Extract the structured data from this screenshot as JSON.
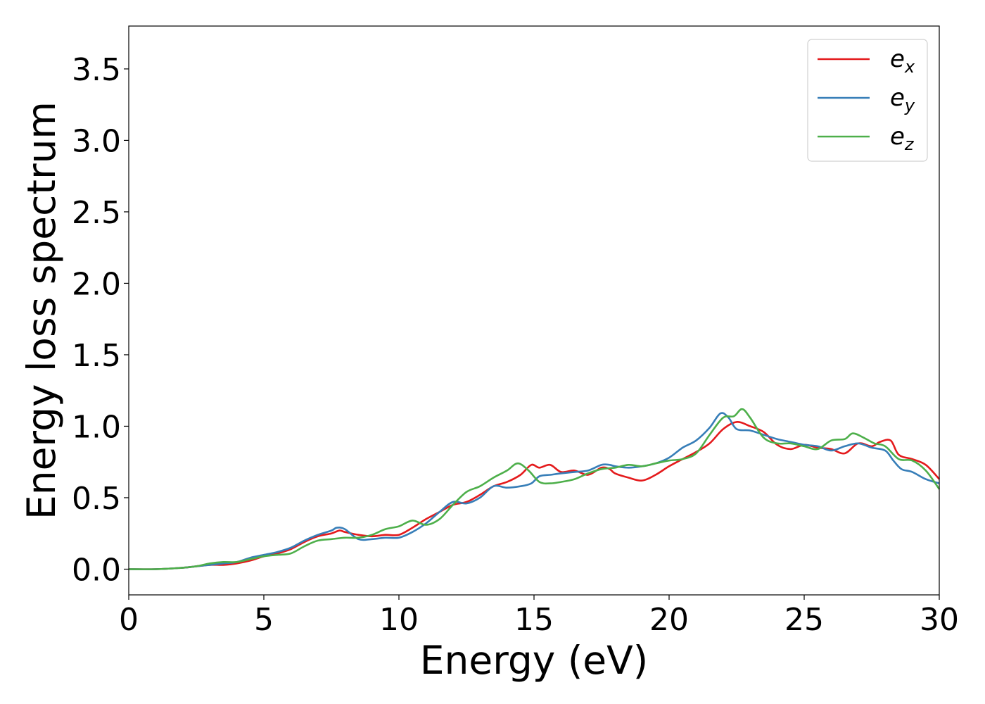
{
  "chart_data": {
    "type": "line",
    "title": "",
    "xlabel": "Energy (eV)",
    "ylabel": "Energy loss spectrum",
    "xlim": [
      0,
      30
    ],
    "ylim": [
      -0.18,
      3.8
    ],
    "xticks": [
      0,
      5,
      10,
      15,
      20,
      25,
      30
    ],
    "xtick_labels": [
      "0",
      "5",
      "10",
      "15",
      "20",
      "25",
      "30"
    ],
    "yticks": [
      0.0,
      0.5,
      1.0,
      1.5,
      2.0,
      2.5,
      3.0,
      3.5
    ],
    "ytick_labels": [
      "0.0",
      "0.5",
      "1.0",
      "1.5",
      "2.0",
      "2.5",
      "3.0",
      "3.5"
    ],
    "grid": false,
    "legend_position": "top-right",
    "series": [
      {
        "name": "e_x",
        "legend_base": "e",
        "legend_sub": "x",
        "color": "#e41a1c",
        "x": [
          0,
          1,
          2,
          2.5,
          3,
          3.5,
          4,
          4.5,
          5,
          5.5,
          6,
          6.5,
          7,
          7.5,
          7.8,
          8,
          8.5,
          9,
          9.5,
          10,
          10.5,
          11,
          11.5,
          12,
          12.5,
          13,
          13.5,
          14,
          14.5,
          14.9,
          15.2,
          15.6,
          16,
          16.5,
          17,
          17.5,
          17.8,
          18,
          18.5,
          19,
          19.5,
          20,
          20.5,
          21,
          21.5,
          22,
          22.5,
          23,
          23.5,
          24,
          24.5,
          25,
          25.5,
          26,
          26.5,
          27,
          27.5,
          27.8,
          28.2,
          28.5,
          29,
          29.5,
          30
        ],
        "y": [
          0,
          0,
          0.01,
          0.02,
          0.03,
          0.03,
          0.04,
          0.06,
          0.09,
          0.11,
          0.14,
          0.19,
          0.23,
          0.25,
          0.27,
          0.26,
          0.24,
          0.23,
          0.24,
          0.24,
          0.29,
          0.35,
          0.4,
          0.45,
          0.47,
          0.52,
          0.58,
          0.61,
          0.66,
          0.73,
          0.71,
          0.73,
          0.68,
          0.69,
          0.66,
          0.71,
          0.7,
          0.67,
          0.64,
          0.62,
          0.66,
          0.72,
          0.77,
          0.82,
          0.88,
          0.98,
          1.03,
          1.0,
          0.96,
          0.87,
          0.84,
          0.87,
          0.85,
          0.84,
          0.81,
          0.88,
          0.86,
          0.89,
          0.9,
          0.8,
          0.77,
          0.73,
          0.63
        ]
      },
      {
        "name": "e_y",
        "legend_base": "e",
        "legend_sub": "y",
        "color": "#377eb8",
        "x": [
          0,
          1,
          2,
          2.5,
          3,
          3.5,
          4,
          4.5,
          5,
          5.5,
          6,
          6.5,
          7,
          7.5,
          7.7,
          8,
          8.5,
          9,
          9.5,
          10,
          10.5,
          11,
          11.5,
          12,
          12.5,
          13,
          13.5,
          14,
          14.5,
          14.9,
          15.2,
          15.6,
          16,
          16.5,
          17,
          17.5,
          17.8,
          18,
          18.5,
          19,
          19.5,
          20,
          20.5,
          21,
          21.5,
          21.9,
          22.2,
          22.5,
          23,
          23.5,
          24,
          24.5,
          25,
          25.5,
          26,
          26.5,
          27,
          27.5,
          28,
          28.3,
          28.6,
          29,
          29.5,
          30
        ],
        "y": [
          0,
          0,
          0.01,
          0.02,
          0.03,
          0.04,
          0.05,
          0.08,
          0.1,
          0.12,
          0.15,
          0.2,
          0.24,
          0.27,
          0.29,
          0.28,
          0.21,
          0.21,
          0.22,
          0.22,
          0.26,
          0.32,
          0.4,
          0.47,
          0.46,
          0.5,
          0.58,
          0.57,
          0.58,
          0.6,
          0.65,
          0.66,
          0.67,
          0.68,
          0.69,
          0.73,
          0.73,
          0.72,
          0.71,
          0.72,
          0.74,
          0.78,
          0.85,
          0.9,
          0.99,
          1.09,
          1.06,
          0.98,
          0.97,
          0.94,
          0.91,
          0.89,
          0.87,
          0.86,
          0.83,
          0.86,
          0.88,
          0.85,
          0.83,
          0.76,
          0.7,
          0.68,
          0.63,
          0.6
        ]
      },
      {
        "name": "e_z",
        "legend_base": "e",
        "legend_sub": "z",
        "color": "#4daf4a",
        "x": [
          0,
          1,
          2,
          2.5,
          3,
          3.5,
          4,
          4.5,
          5,
          5.5,
          6,
          6.5,
          7,
          7.5,
          8,
          8.5,
          9,
          9.5,
          10,
          10.5,
          11,
          11.5,
          12,
          12.5,
          13,
          13.5,
          14,
          14.4,
          14.8,
          15.2,
          15.6,
          16,
          16.5,
          17,
          17.5,
          18,
          18.5,
          19,
          19.5,
          20,
          20.5,
          21,
          21.5,
          22,
          22.4,
          22.7,
          23,
          23.5,
          24,
          24.5,
          25,
          25.5,
          26,
          26.5,
          26.8,
          27.2,
          27.6,
          28,
          28.5,
          29,
          29.5,
          30
        ],
        "y": [
          0,
          0,
          0.01,
          0.02,
          0.04,
          0.05,
          0.05,
          0.07,
          0.09,
          0.1,
          0.11,
          0.16,
          0.2,
          0.21,
          0.22,
          0.22,
          0.24,
          0.28,
          0.3,
          0.34,
          0.31,
          0.35,
          0.45,
          0.54,
          0.58,
          0.64,
          0.69,
          0.74,
          0.69,
          0.61,
          0.6,
          0.61,
          0.63,
          0.67,
          0.7,
          0.71,
          0.73,
          0.72,
          0.74,
          0.76,
          0.77,
          0.81,
          0.94,
          1.06,
          1.07,
          1.12,
          1.06,
          0.92,
          0.88,
          0.88,
          0.86,
          0.84,
          0.9,
          0.91,
          0.95,
          0.92,
          0.88,
          0.86,
          0.77,
          0.76,
          0.69,
          0.56
        ]
      }
    ]
  }
}
